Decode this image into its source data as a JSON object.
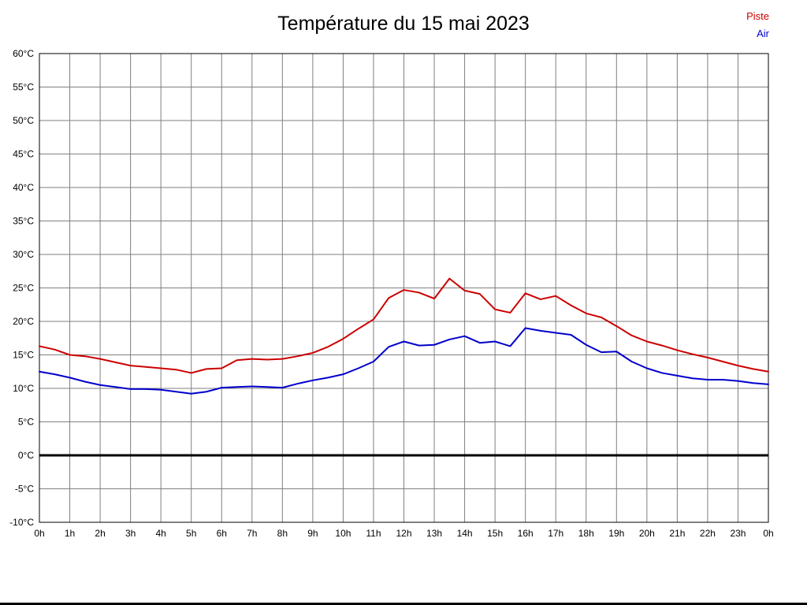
{
  "page": {
    "background": "#ffffff"
  },
  "header": {
    "title": "Température du 15 mai 2023"
  },
  "chart_data": {
    "type": "line",
    "title": "Température du 15 mai 2023",
    "xlabel": "",
    "ylabel": "",
    "xlim": [
      0,
      24
    ],
    "ylim": [
      -10,
      60
    ],
    "grid": true,
    "grid_color": "#7f7f7f",
    "frame_color": "#000000",
    "zero_line": {
      "value": 0,
      "color": "#000000",
      "width": 3
    },
    "legend_position": "top-right",
    "x_ticks": [
      0,
      1,
      2,
      3,
      4,
      5,
      6,
      7,
      8,
      9,
      10,
      11,
      12,
      13,
      14,
      15,
      16,
      17,
      18,
      19,
      20,
      21,
      22,
      23,
      24
    ],
    "x_tick_labels": [
      "0h",
      "1h",
      "2h",
      "3h",
      "4h",
      "5h",
      "6h",
      "7h",
      "8h",
      "9h",
      "10h",
      "11h",
      "12h",
      "13h",
      "14h",
      "15h",
      "16h",
      "17h",
      "18h",
      "19h",
      "20h",
      "21h",
      "22h",
      "23h",
      "0h"
    ],
    "y_ticks": [
      60,
      55,
      50,
      45,
      40,
      35,
      30,
      25,
      20,
      15,
      10,
      5,
      0,
      -5,
      -10
    ],
    "y_tick_labels": [
      "60°C",
      "55°C",
      "50°C",
      "45°C",
      "40°C",
      "35°C",
      "30°C",
      "25°C",
      "20°C",
      "15°C",
      "10°C",
      "5°C",
      "0°C",
      "-5°C",
      "-10°C"
    ],
    "x": [
      0,
      0.5,
      1,
      1.5,
      2,
      2.5,
      3,
      3.5,
      4,
      4.5,
      5,
      5.5,
      6,
      6.5,
      7,
      7.5,
      8,
      8.5,
      9,
      9.5,
      10,
      10.5,
      11,
      11.5,
      12,
      12.5,
      13,
      13.5,
      14,
      14.5,
      15,
      15.5,
      16,
      16.5,
      17,
      17.5,
      18,
      18.5,
      19,
      19.5,
      20,
      20.5,
      21,
      21.5,
      22,
      22.5,
      23,
      23.5,
      24
    ],
    "series": [
      {
        "name": "Piste",
        "color": "#cc0000",
        "values": [
          16.3,
          15.8,
          15.0,
          14.8,
          14.4,
          13.9,
          13.4,
          13.2,
          13.0,
          12.8,
          12.3,
          12.9,
          13.0,
          14.2,
          14.4,
          14.3,
          14.4,
          14.8,
          15.3,
          16.2,
          17.4,
          18.9,
          20.3,
          23.5,
          24.7,
          24.3,
          23.4,
          26.4,
          24.6,
          24.1,
          21.8,
          21.3,
          24.2,
          23.3,
          23.8,
          22.4,
          21.2,
          20.6,
          19.3,
          17.9,
          17.0,
          16.4,
          15.7,
          15.1,
          14.6,
          14.0,
          13.4,
          12.9,
          12.5
        ]
      },
      {
        "name": "Air",
        "color": "#0000cc",
        "values": [
          12.5,
          12.1,
          11.6,
          11.0,
          10.5,
          10.2,
          9.9,
          9.9,
          9.8,
          9.5,
          9.2,
          9.5,
          10.1,
          10.2,
          10.3,
          10.2,
          10.1,
          10.7,
          11.2,
          11.6,
          12.1,
          13.0,
          14.0,
          16.2,
          17.0,
          16.4,
          16.5,
          17.3,
          17.8,
          16.8,
          17.0,
          16.3,
          19.0,
          18.6,
          18.3,
          18.0,
          16.5,
          15.4,
          15.5,
          14.0,
          13.0,
          12.3,
          11.9,
          11.5,
          11.3,
          11.3,
          11.1,
          10.8,
          10.6
        ]
      }
    ]
  }
}
